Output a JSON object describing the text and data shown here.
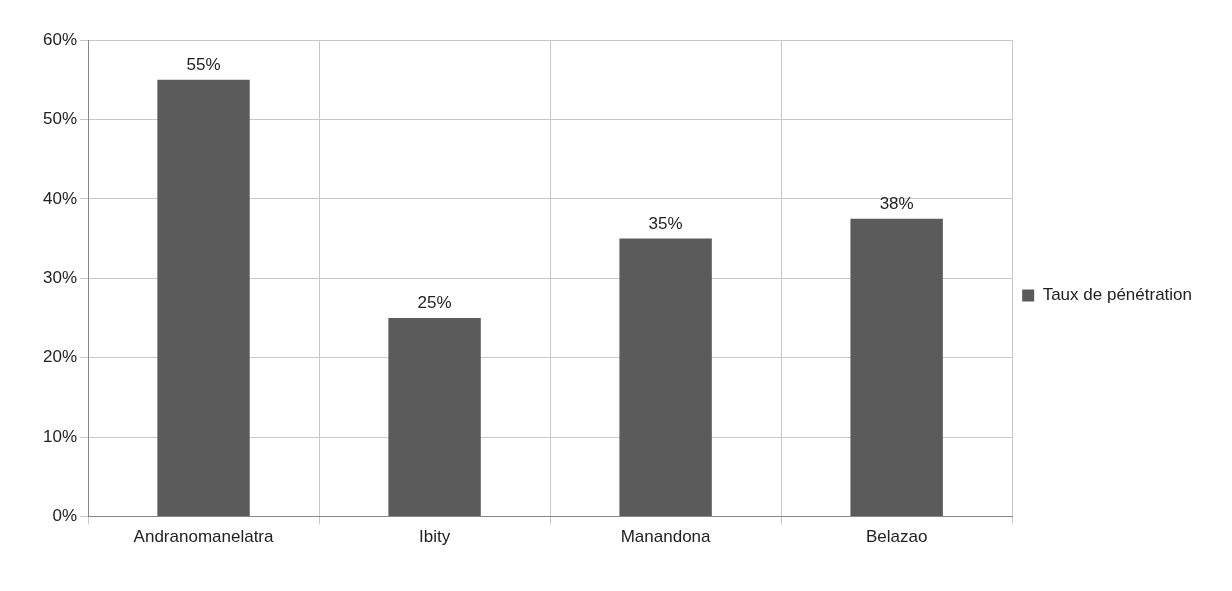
{
  "chart_data": {
    "type": "bar",
    "categories": [
      "Andranomanelatra",
      "Ibity",
      "Manandona",
      "Belazao"
    ],
    "series": [
      {
        "name": "Taux de pénétration",
        "color": "#5b5b5b",
        "values": [
          55,
          25,
          35,
          37.5
        ],
        "value_labels": [
          "55%",
          "25%",
          "35%",
          "38%"
        ]
      }
    ],
    "ylim": [
      0,
      60
    ],
    "yticks": [
      {
        "value": 0,
        "label": "0%"
      },
      {
        "value": 10,
        "label": "10%"
      },
      {
        "value": 20,
        "label": "20%"
      },
      {
        "value": 30,
        "label": "30%"
      },
      {
        "value": 40,
        "label": "40%"
      },
      {
        "value": 50,
        "label": "50%"
      },
      {
        "value": 60,
        "label": "60%"
      }
    ],
    "grid": true,
    "legend": "right"
  }
}
